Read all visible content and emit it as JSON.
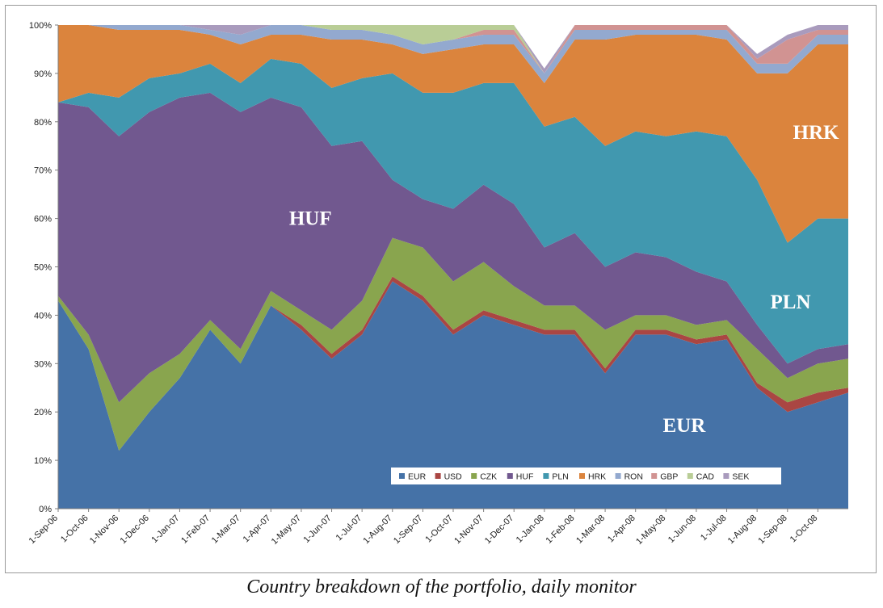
{
  "caption": "Country breakdown of the portfolio, daily monitor",
  "chart_data": {
    "type": "area",
    "stacked": true,
    "normalized_percent": true,
    "ylim": [
      0,
      100
    ],
    "yticks": [
      "0%",
      "10%",
      "20%",
      "30%",
      "40%",
      "50%",
      "60%",
      "70%",
      "80%",
      "90%",
      "100%"
    ],
    "xticks": [
      "1-Sep-06",
      "1-Oct-06",
      "1-Nov-06",
      "1-Dec-06",
      "1-Jan-07",
      "1-Feb-07",
      "1-Mar-07",
      "1-Apr-07",
      "1-May-07",
      "1-Jun-07",
      "1-Jul-07",
      "1-Aug-07",
      "1-Sep-07",
      "1-Oct-07",
      "1-Nov-07",
      "1-Dec-07",
      "1-Jan-08",
      "1-Feb-08",
      "1-Mar-08",
      "1-Apr-08",
      "1-May-08",
      "1-Jun-08",
      "1-Jul-08",
      "1-Aug-08",
      "1-Sep-08",
      "1-Oct-08"
    ],
    "x": [
      "1-Sep-06",
      "1-Oct-06",
      "1-Nov-06",
      "1-Dec-06",
      "1-Jan-07",
      "1-Feb-07",
      "1-Mar-07",
      "1-Apr-07",
      "1-May-07",
      "1-Jun-07",
      "1-Jul-07",
      "1-Aug-07",
      "1-Sep-07",
      "1-Oct-07",
      "1-Nov-07",
      "1-Dec-07",
      "1-Jan-08",
      "1-Feb-08",
      "1-Mar-08",
      "1-Apr-08",
      "1-May-08",
      "1-Jun-08",
      "1-Jul-08",
      "1-Aug-08",
      "1-Sep-08",
      "1-Oct-08",
      "10-Nov-08"
    ],
    "legend_position": "bottom-right inside plot",
    "grid": false,
    "series": [
      {
        "name": "EUR",
        "color": "#4572A7",
        "values": [
          43,
          33,
          12,
          20,
          27,
          37,
          30,
          42,
          37,
          31,
          36,
          47,
          43,
          36,
          40,
          38,
          36,
          36,
          28,
          36,
          36,
          34,
          35,
          25,
          20,
          22,
          24
        ]
      },
      {
        "name": "USD",
        "color": "#AA4643",
        "values": [
          0,
          0,
          0,
          0,
          0,
          0,
          0,
          0,
          1,
          1,
          1,
          1,
          1,
          1,
          1,
          1,
          1,
          1,
          1,
          1,
          1,
          1,
          1,
          1,
          2,
          2,
          1
        ]
      },
      {
        "name": "CZK",
        "color": "#89A54E",
        "values": [
          1,
          3,
          10,
          8,
          5,
          2,
          3,
          3,
          3,
          5,
          6,
          8,
          10,
          10,
          10,
          7,
          5,
          5,
          8,
          3,
          3,
          3,
          3,
          7,
          5,
          6,
          6
        ]
      },
      {
        "name": "HUF",
        "color": "#71588F",
        "values": [
          40,
          47,
          55,
          54,
          53,
          47,
          49,
          40,
          42,
          38,
          33,
          12,
          10,
          15,
          16,
          17,
          12,
          15,
          13,
          13,
          12,
          11,
          8,
          5,
          3,
          3,
          3
        ]
      },
      {
        "name": "PLN",
        "color": "#4198AF",
        "values": [
          0,
          3,
          8,
          7,
          5,
          6,
          6,
          8,
          9,
          12,
          13,
          22,
          22,
          24,
          21,
          25,
          25,
          24,
          25,
          25,
          25,
          29,
          30,
          30,
          25,
          27,
          26
        ]
      },
      {
        "name": "HRK",
        "color": "#DB843D",
        "values": [
          16,
          14,
          14,
          10,
          9,
          6,
          8,
          5,
          6,
          10,
          8,
          6,
          8,
          9,
          8,
          8,
          9,
          16,
          22,
          20,
          21,
          20,
          20,
          22,
          35,
          36,
          36
        ]
      },
      {
        "name": "RON",
        "color": "#93A9CF",
        "values": [
          0,
          0,
          1,
          1,
          1,
          1,
          2,
          2,
          2,
          2,
          2,
          2,
          2,
          2,
          2,
          2,
          2,
          2,
          2,
          1,
          1,
          1,
          2,
          2,
          2,
          2,
          2
        ]
      },
      {
        "name": "GBP",
        "color": "#D19392",
        "values": [
          0,
          0,
          0,
          0,
          0,
          0,
          0,
          0,
          0,
          0,
          0,
          0,
          0,
          0,
          1,
          1,
          0,
          1,
          1,
          1,
          1,
          1,
          1,
          1,
          5,
          1,
          1
        ]
      },
      {
        "name": "CAD",
        "color": "#B9CD96",
        "values": [
          0,
          0,
          0,
          0,
          0,
          0,
          0,
          0,
          0,
          1,
          1,
          2,
          4,
          3,
          1,
          1,
          0,
          0,
          0,
          0,
          0,
          0,
          0,
          0,
          0,
          0,
          0
        ]
      },
      {
        "name": "SEK",
        "color": "#A99BBD",
        "values": [
          0,
          0,
          0,
          0,
          0,
          1,
          2,
          0,
          0,
          0,
          0,
          0,
          0,
          0,
          0,
          0,
          1,
          0,
          0,
          0,
          0,
          0,
          0,
          1,
          1,
          1,
          1
        ]
      }
    ],
    "annotations": [
      "HUF",
      "EUR",
      "PLN",
      "HRK"
    ]
  }
}
